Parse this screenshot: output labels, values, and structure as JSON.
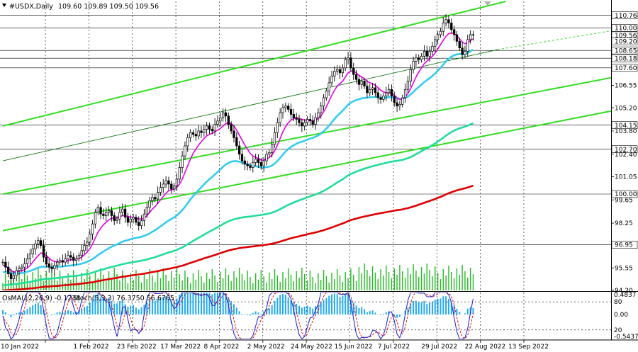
{
  "header": {
    "symbol": "#USDX,Daily",
    "ohlc": "109.60 109.89 109.50 109.56"
  },
  "osc_header": {
    "osma": "OsMA(12,26,9) -0.1238",
    "stoch": "Stoch(5,3,3) 76.3750 56.6765"
  },
  "colors": {
    "candle": "#000000",
    "ema_fast": "#e600e6",
    "ema_mid": "#33ccee",
    "ema_slow": "#22dd99",
    "ema_long": "#dd0000",
    "channel": "#33dd22",
    "volume": "#22bb22",
    "osma": "#22aaee",
    "stoch_main": "#1a1acc",
    "stoch_signal": "#dd1111",
    "grid": "#000000"
  },
  "chart_data": {
    "type": "line",
    "y_ticks": [
      "110.76",
      "110.00",
      "109.56",
      "109.20",
      "108.65",
      "108.18",
      "107.60",
      "106.55",
      "105.20",
      "104.15",
      "103.80",
      "102.70",
      "102.40",
      "101.05",
      "100.00",
      "99.65",
      "98.25",
      "96.95",
      "95.55",
      "94.20"
    ],
    "y_range": [
      94.2,
      111.6
    ],
    "x_ticks": [
      "10 Jan 2022",
      "1 Feb 2022",
      "23 Feb 2022",
      "17 Mar 2022",
      "8 Apr 2022",
      "2 May 2022",
      "24 May 2022",
      "15 Jun 2022",
      "7 Jul 2022",
      "29 Jul 2022",
      "22 Aug 2022",
      "13 Sep 2022"
    ],
    "x_tick_index": [
      0,
      16,
      32,
      48,
      64,
      80,
      96,
      112,
      128,
      144,
      160,
      176
    ],
    "close": [
      95.9,
      95.6,
      95.2,
      94.9,
      95.1,
      95.4,
      95.5,
      95.6,
      95.8,
      96.1,
      96.4,
      96.7,
      97.0,
      97.2,
      96.9,
      96.2,
      95.8,
      95.6,
      95.5,
      95.7,
      95.9,
      96.0,
      95.9,
      96.1,
      96.3,
      96.2,
      96.0,
      96.1,
      96.3,
      96.6,
      96.9,
      97.1,
      97.6,
      98.2,
      98.9,
      99.2,
      98.8,
      98.7,
      98.9,
      99.0,
      98.7,
      98.4,
      98.5,
      98.9,
      99.1,
      98.6,
      98.3,
      98.5,
      98.6,
      98.3,
      98.1,
      98.4,
      98.8,
      99.2,
      99.6,
      99.8,
      99.7,
      100.1,
      100.4,
      100.6,
      100.8,
      100.6,
      100.3,
      100.5,
      100.9,
      101.6,
      102.3,
      102.9,
      103.4,
      103.7,
      103.6,
      103.5,
      103.8,
      103.7,
      103.9,
      104.1,
      103.9,
      103.8,
      104.2,
      104.4,
      104.6,
      104.9,
      104.7,
      104.2,
      103.8,
      103.4,
      102.9,
      102.4,
      102.0,
      101.8,
      101.7,
      101.6,
      101.9,
      102.1,
      101.9,
      101.7,
      102.0,
      102.4,
      102.5,
      103.0,
      103.7,
      104.3,
      104.9,
      105.2,
      105.3,
      105.1,
      104.8,
      104.6,
      104.5,
      104.3,
      104.1,
      104.3,
      104.5,
      104.4,
      104.2,
      104.6,
      104.9,
      105.3,
      105.8,
      106.2,
      106.7,
      107.1,
      107.4,
      107.5,
      107.3,
      107.6,
      108.1,
      108.2,
      107.6,
      107.2,
      106.9,
      106.6,
      106.8,
      106.5,
      106.1,
      106.3,
      106.4,
      106.1,
      105.8,
      105.7,
      105.9,
      106.1,
      106.3,
      105.9,
      105.5,
      105.3,
      105.4,
      105.8,
      106.3,
      106.8,
      107.5,
      108.0,
      108.2,
      108.1,
      108.3,
      108.6,
      108.3,
      108.6,
      108.9,
      109.3,
      109.6,
      109.8,
      110.3,
      110.5,
      110.3,
      109.9,
      109.6,
      109.2,
      108.8,
      108.4,
      108.6,
      109.3,
      109.6,
      109.6
    ],
    "ema_fast": [
      95.7,
      95.65,
      95.55,
      95.4,
      95.3,
      95.32,
      95.35,
      95.38,
      95.45,
      95.55,
      95.7,
      95.9,
      96.1,
      96.3,
      96.45,
      96.4,
      96.3,
      96.15,
      96.0,
      95.95,
      95.93,
      95.92,
      95.92,
      95.95,
      96.0,
      96.05,
      96.05,
      96.07,
      96.12,
      96.2,
      96.35,
      96.5,
      96.7,
      97.0,
      97.35,
      97.7,
      97.95,
      98.15,
      98.3,
      98.45,
      98.55,
      98.55,
      98.57,
      98.62,
      98.7,
      98.7,
      98.65,
      98.62,
      98.6,
      98.55,
      98.5,
      98.5,
      98.55,
      98.7,
      98.9,
      99.1,
      99.25,
      99.45,
      99.65,
      99.85,
      100.05,
      100.2,
      100.25,
      100.3,
      100.4,
      100.6,
      100.9,
      101.3,
      101.7,
      102.1,
      102.45,
      102.7,
      102.95,
      103.15,
      103.35,
      103.5,
      103.6,
      103.65,
      103.75,
      103.85,
      103.95,
      104.1,
      104.25,
      104.3,
      104.25,
      104.1,
      103.85,
      103.55,
      103.25,
      102.95,
      102.7,
      102.45,
      102.3,
      102.2,
      102.15,
      102.05,
      102.05,
      102.1,
      102.2,
      102.35,
      102.6,
      102.95,
      103.35,
      103.75,
      104.05,
      104.3,
      104.45,
      104.55,
      104.6,
      104.55,
      104.5,
      104.45,
      104.45,
      104.45,
      104.4,
      104.45,
      104.55,
      104.7,
      104.95,
      105.25,
      105.6,
      105.95,
      106.25,
      106.5,
      106.65,
      106.8,
      107.05,
      107.3,
      107.4,
      107.4,
      107.3,
      107.15,
      107.05,
      106.95,
      106.8,
      106.7,
      106.65,
      106.55,
      106.4,
      106.25,
      106.15,
      106.1,
      106.1,
      106.05,
      105.95,
      105.8,
      105.7,
      105.7,
      105.85,
      106.05,
      106.35,
      106.7,
      107.05,
      107.35,
      107.6,
      107.85,
      108.0,
      108.15,
      108.3,
      108.5,
      108.75,
      109.0,
      109.25,
      109.5,
      109.65,
      109.7,
      109.65,
      109.55,
      109.35,
      109.15,
      109.05,
      109.1,
      109.25,
      109.35
    ],
    "ema_mid": [
      95.3,
      95.3,
      95.28,
      95.25,
      95.22,
      95.22,
      95.23,
      95.25,
      95.28,
      95.32,
      95.37,
      95.43,
      95.5,
      95.57,
      95.62,
      95.63,
      95.63,
      95.62,
      95.61,
      95.61,
      95.62,
      95.63,
      95.64,
      95.66,
      95.68,
      95.7,
      95.72,
      95.74,
      95.77,
      95.81,
      95.86,
      95.92,
      95.99,
      96.09,
      96.2,
      96.33,
      96.44,
      96.54,
      96.64,
      96.74,
      96.83,
      96.9,
      96.97,
      97.05,
      97.13,
      97.19,
      97.23,
      97.28,
      97.33,
      97.36,
      97.39,
      97.43,
      97.48,
      97.55,
      97.63,
      97.73,
      97.82,
      97.93,
      98.05,
      98.17,
      98.3,
      98.41,
      98.5,
      98.6,
      98.71,
      98.86,
      99.03,
      99.23,
      99.45,
      99.67,
      99.87,
      100.05,
      100.24,
      100.41,
      100.58,
      100.75,
      100.9,
      101.03,
      101.18,
      101.33,
      101.48,
      101.64,
      101.78,
      101.88,
      101.95,
      101.98,
      101.98,
      101.95,
      101.9,
      101.85,
      101.79,
      101.73,
      101.69,
      101.67,
      101.64,
      101.6,
      101.6,
      101.62,
      101.65,
      101.72,
      101.84,
      101.99,
      102.18,
      102.38,
      102.56,
      102.72,
      102.84,
      102.94,
      103.03,
      103.1,
      103.15,
      103.21,
      103.28,
      103.34,
      103.38,
      103.45,
      103.53,
      103.64,
      103.78,
      103.94,
      104.12,
      104.32,
      104.52,
      104.71,
      104.86,
      105.02,
      105.2,
      105.38,
      105.5,
      105.59,
      105.66,
      105.71,
      105.76,
      105.79,
      105.8,
      105.82,
      105.84,
      105.84,
      105.82,
      105.8,
      105.8,
      105.81,
      105.83,
      105.83,
      105.8,
      105.76,
      105.73,
      105.74,
      105.79,
      105.87,
      106.0,
      106.15,
      106.31,
      106.45,
      106.59,
      106.74,
      106.86,
      106.98,
      107.11,
      107.26,
      107.43,
      107.6,
      107.79,
      107.99,
      108.15,
      108.27,
      108.36,
      108.41,
      108.43,
      108.42,
      108.43,
      108.5,
      108.6,
      108.7
    ],
    "ema_slow": [
      94.5,
      94.52,
      94.54,
      94.55,
      94.57,
      94.59,
      94.61,
      94.63,
      94.66,
      94.68,
      94.71,
      94.74,
      94.78,
      94.81,
      94.85,
      94.87,
      94.89,
      94.9,
      94.92,
      94.93,
      94.95,
      94.97,
      94.99,
      95.01,
      95.03,
      95.05,
      95.06,
      95.08,
      95.1,
      95.13,
      95.16,
      95.19,
      95.22,
      95.27,
      95.32,
      95.38,
      95.43,
      95.47,
      95.52,
      95.57,
      95.61,
      95.65,
      95.69,
      95.73,
      95.78,
      95.81,
      95.84,
      95.87,
      95.91,
      95.93,
      95.96,
      95.99,
      96.02,
      96.06,
      96.11,
      96.15,
      96.2,
      96.25,
      96.31,
      96.37,
      96.43,
      96.48,
      96.53,
      96.58,
      96.64,
      96.71,
      96.79,
      96.88,
      96.98,
      97.08,
      97.18,
      97.27,
      97.37,
      97.46,
      97.55,
      97.65,
      97.74,
      97.82,
      97.91,
      98.0,
      98.09,
      98.19,
      98.28,
      98.36,
      98.42,
      98.48,
      98.52,
      98.56,
      98.59,
      98.61,
      98.63,
      98.65,
      98.67,
      98.7,
      98.72,
      98.74,
      98.77,
      98.8,
      98.83,
      98.88,
      98.94,
      99.01,
      99.09,
      99.18,
      99.26,
      99.35,
      99.42,
      99.49,
      99.56,
      99.62,
      99.68,
      99.74,
      99.8,
      99.86,
      99.91,
      99.97,
      100.04,
      100.11,
      100.19,
      100.28,
      100.38,
      100.48,
      100.59,
      100.7,
      100.79,
      100.89,
      101.01,
      101.12,
      101.21,
      101.28,
      101.35,
      101.41,
      101.47,
      101.53,
      101.58,
      101.63,
      101.68,
      101.72,
      101.76,
      101.8,
      101.84,
      101.88,
      101.92,
      101.95,
      101.98,
      102.0,
      102.03,
      102.06,
      102.11,
      102.16,
      102.23,
      102.31,
      102.4,
      102.49,
      102.58,
      102.68,
      102.76,
      102.85,
      102.95,
      103.05,
      103.16,
      103.27,
      103.39,
      103.52,
      103.63,
      103.73,
      103.82,
      103.89,
      103.96,
      104.01,
      104.06,
      104.12,
      104.2,
      104.27
    ],
    "ema_long": [
      94.2,
      94.21,
      94.22,
      94.23,
      94.24,
      94.25,
      94.26,
      94.27,
      94.29,
      94.3,
      94.32,
      94.33,
      94.35,
      94.37,
      94.39,
      94.41,
      94.42,
      94.43,
      94.45,
      94.46,
      94.47,
      94.49,
      94.5,
      94.52,
      94.53,
      94.55,
      94.56,
      94.57,
      94.59,
      94.61,
      94.63,
      94.65,
      94.67,
      94.69,
      94.72,
      94.76,
      94.79,
      94.82,
      94.85,
      94.88,
      94.91,
      94.93,
      94.96,
      94.99,
      95.02,
      95.04,
      95.07,
      95.09,
      95.12,
      95.14,
      95.16,
      95.18,
      95.21,
      95.24,
      95.27,
      95.3,
      95.33,
      95.36,
      95.4,
      95.43,
      95.47,
      95.5,
      95.53,
      95.57,
      95.6,
      95.65,
      95.69,
      95.74,
      95.8,
      95.85,
      95.91,
      95.96,
      96.02,
      96.07,
      96.13,
      96.18,
      96.23,
      96.28,
      96.33,
      96.39,
      96.44,
      96.5,
      96.55,
      96.6,
      96.64,
      96.68,
      96.71,
      96.74,
      96.77,
      96.79,
      96.81,
      96.83,
      96.85,
      96.87,
      96.89,
      96.91,
      96.93,
      96.95,
      96.98,
      97.01,
      97.05,
      97.09,
      97.14,
      97.19,
      97.24,
      97.29,
      97.34,
      97.38,
      97.42,
      97.46,
      97.5,
      97.54,
      97.58,
      97.62,
      97.65,
      97.69,
      97.73,
      97.78,
      97.82,
      97.88,
      97.93,
      97.99,
      98.05,
      98.11,
      98.17,
      98.23,
      98.3,
      98.37,
      98.43,
      98.48,
      98.52,
      98.57,
      98.61,
      98.65,
      98.68,
      98.72,
      98.75,
      98.79,
      98.82,
      98.85,
      98.88,
      98.91,
      98.94,
      98.97,
      99.0,
      99.03,
      99.05,
      99.08,
      99.12,
      99.15,
      99.2,
      99.25,
      99.3,
      99.36,
      99.41,
      99.47,
      99.53,
      99.59,
      99.64,
      99.7,
      99.77,
      99.83,
      99.9,
      99.98,
      100.05,
      100.11,
      100.17,
      100.22,
      100.27,
      100.31,
      100.35,
      100.4,
      100.45,
      100.5
    ],
    "channel_lines": [
      {
        "x": [
          0,
          185
        ],
        "y": [
          104.1,
          111.6
        ]
      },
      {
        "x": [
          0,
          230
        ],
        "y": [
          100.0,
          107.2
        ]
      },
      {
        "x": [
          0,
          230
        ],
        "y": [
          97.8,
          105.2
        ]
      }
    ],
    "thin_trend": {
      "x": [
        0,
        182
      ],
      "y": [
        102.0,
        108.7
      ]
    },
    "dashed_trend": {
      "x": [
        182,
        230
      ],
      "y": [
        108.7,
        110.0
      ]
    },
    "hlines": [
      110.76,
      110.0,
      108.65,
      108.18,
      107.6,
      104.15,
      102.7,
      100.0,
      96.95
    ],
    "osc_ticks": [
      "0.4837",
      "80",
      "0.00",
      "20",
      "-0.5437"
    ],
    "osc_range": [
      -0.5437,
      0.4837
    ],
    "stoch_levels": [
      20,
      80
    ]
  }
}
